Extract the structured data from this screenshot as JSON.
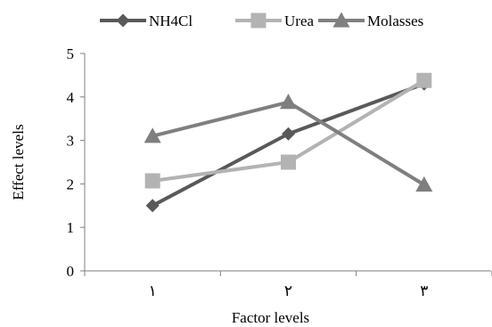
{
  "chart_data": {
    "type": "line",
    "categories": [
      "١",
      "٢",
      "٣"
    ],
    "series": [
      {
        "name": "NH4Cl",
        "values": [
          1.5,
          3.15,
          4.3
        ],
        "color": "#595959",
        "marker": "diamond"
      },
      {
        "name": "Urea",
        "values": [
          2.07,
          2.5,
          4.38
        ],
        "color": "#b3b3b3",
        "marker": "square"
      },
      {
        "name": "Molasses",
        "values": [
          3.1,
          3.88,
          1.98
        ],
        "color": "#7f7f7f",
        "marker": "triangle"
      }
    ],
    "title": "",
    "xlabel": "Factor levels",
    "ylabel": "Effect levels",
    "ylim": [
      0,
      5
    ],
    "yticks": [
      "0",
      "1",
      "2",
      "3",
      "4",
      "5"
    ],
    "grid": false,
    "legend": "top"
  }
}
